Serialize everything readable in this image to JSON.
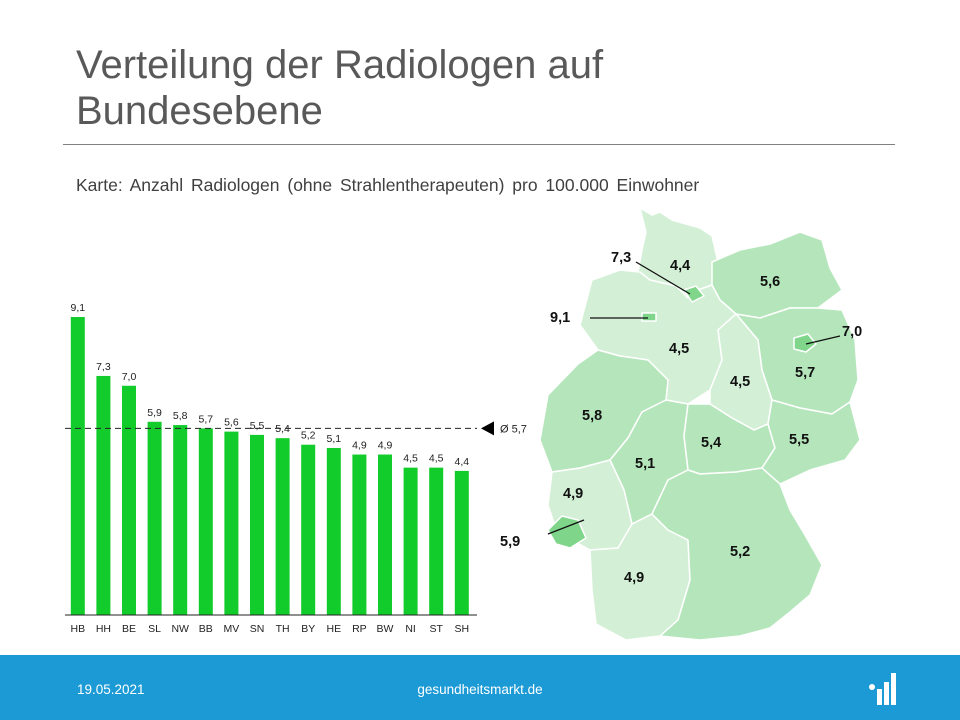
{
  "slide": {
    "title": "Verteilung der Radiologen auf Bundesebene",
    "subtitle": "Karte: Anzahl  Radiologen  (ohne  Strahlentherapeuten)  pro  100.000  Einwohner"
  },
  "colors": {
    "bar": "#11cc2a",
    "footer": "#1c9ad6",
    "map_light": "#d3f0d6",
    "map_mid": "#b5e6bb",
    "map_dark": "#7fd68a"
  },
  "chart_data": {
    "type": "bar",
    "categories": [
      "HB",
      "HH",
      "BE",
      "SL",
      "NW",
      "BB",
      "MV",
      "SN",
      "TH",
      "BY",
      "HE",
      "RP",
      "BW",
      "NI",
      "ST",
      "SH"
    ],
    "values": [
      9.1,
      7.3,
      7.0,
      5.9,
      5.8,
      5.7,
      5.6,
      5.5,
      5.4,
      5.2,
      5.1,
      4.9,
      4.9,
      4.5,
      4.5,
      4.4
    ],
    "value_labels": [
      "9,1",
      "7,3",
      "7,0",
      "5,9",
      "5,8",
      "5,7",
      "5,6",
      "5,5",
      "5,4",
      "5,2",
      "5,1",
      "4,9",
      "4,9",
      "4,5",
      "4,5",
      "4,4"
    ],
    "ylim": [
      0,
      9.1
    ],
    "reference_line": {
      "value": 5.7,
      "label": "Ø 5,7"
    },
    "grid": false,
    "legend": "none"
  },
  "map_data": {
    "regions": [
      {
        "code": "SH",
        "label": "4,4",
        "shade": "light"
      },
      {
        "code": "HH",
        "label": "7,3",
        "shade": "dark"
      },
      {
        "code": "MV",
        "label": "5,6",
        "shade": "mid"
      },
      {
        "code": "HB",
        "label": "9,1",
        "shade": "dark"
      },
      {
        "code": "NI",
        "label": "4,5",
        "shade": "light"
      },
      {
        "code": "BE",
        "label": "7,0",
        "shade": "dark"
      },
      {
        "code": "BB",
        "label": "5,7",
        "shade": "mid"
      },
      {
        "code": "ST",
        "label": "4,5",
        "shade": "light"
      },
      {
        "code": "NW",
        "label": "5,8",
        "shade": "mid"
      },
      {
        "code": "SN",
        "label": "5,5",
        "shade": "mid"
      },
      {
        "code": "TH",
        "label": "5,4",
        "shade": "mid"
      },
      {
        "code": "HE",
        "label": "5,1",
        "shade": "mid"
      },
      {
        "code": "RP",
        "label": "4,9",
        "shade": "light"
      },
      {
        "code": "SL",
        "label": "5,9",
        "shade": "dark"
      },
      {
        "code": "BW",
        "label": "4,9",
        "shade": "light"
      },
      {
        "code": "BY",
        "label": "5,2",
        "shade": "mid"
      }
    ]
  },
  "footer": {
    "date": "19.05.2021",
    "site": "gesundheitsmarkt.de",
    "logo_icon": "gesundheitsmarkt-logo-icon"
  }
}
